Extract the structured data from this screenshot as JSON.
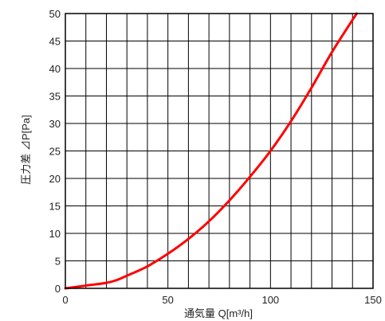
{
  "chart_data": {
    "type": "line",
    "xlabel": "通気量 Q[m³/h]",
    "ylabel": "圧力差 ⊿P[Pa]",
    "xlim": [
      0,
      150
    ],
    "ylim": [
      0,
      50
    ],
    "x_tick_labels": [
      "0",
      "50",
      "100",
      "150"
    ],
    "y_tick_labels": [
      "0",
      "5",
      "10",
      "15",
      "20",
      "25",
      "30",
      "35",
      "40",
      "45",
      "50"
    ],
    "grid": true,
    "series": [
      {
        "color": "#ff0000",
        "points": [
          [
            0,
            0
          ],
          [
            10,
            0.5
          ],
          [
            20,
            1.0
          ],
          [
            25,
            1.5
          ],
          [
            30,
            2.3
          ],
          [
            40,
            4.0
          ],
          [
            50,
            6.3
          ],
          [
            60,
            9.0
          ],
          [
            70,
            12.2
          ],
          [
            80,
            16.0
          ],
          [
            90,
            20.3
          ],
          [
            100,
            25.0
          ],
          [
            110,
            30.4
          ],
          [
            120,
            36.5
          ],
          [
            130,
            43.0
          ],
          [
            142,
            50
          ]
        ]
      }
    ]
  }
}
